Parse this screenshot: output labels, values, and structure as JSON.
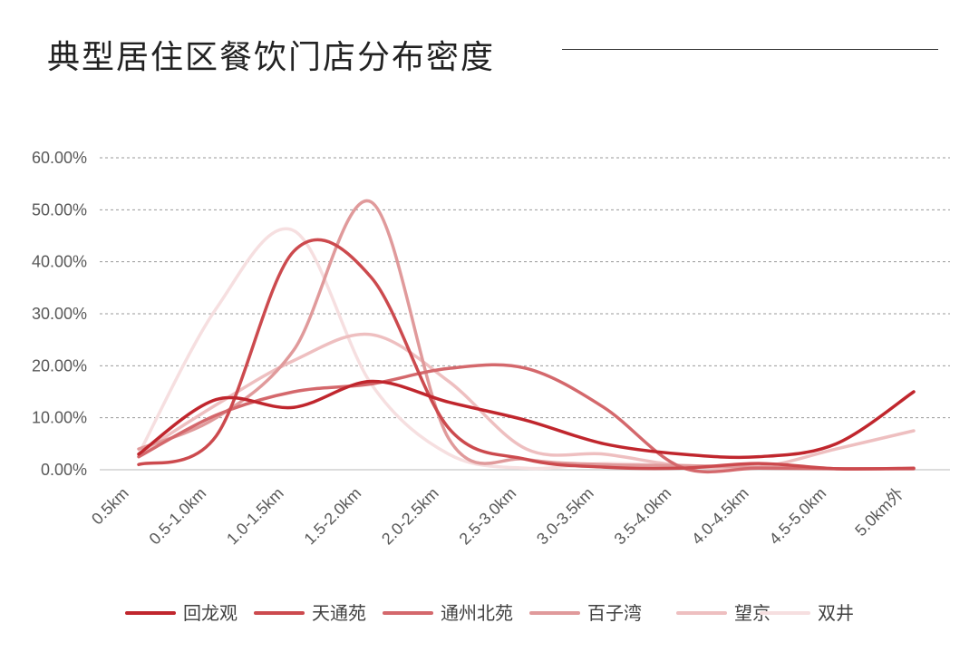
{
  "title": "典型居住区餐饮门店分布密度",
  "chart_data": {
    "type": "line",
    "smooth": true,
    "title": "典型居住区餐饮门店分布密度",
    "categories": [
      "0.5km",
      "0.5-1.0km",
      "1.0-1.5km",
      "1.5-2.0km",
      "2.0-2.5km",
      "2.5-3.0km",
      "3.0-3.5km",
      "3.5-4.0km",
      "4.0-4.5km",
      "4.5-5.0km",
      "5.0km外"
    ],
    "y_ticks": [
      "0.00%",
      "10.00%",
      "20.00%",
      "30.00%",
      "40.00%",
      "50.00%",
      "60.00%"
    ],
    "ylim": [
      0,
      60
    ],
    "grid": true,
    "legend_position": "bottom",
    "series": [
      {
        "name": "回龙观",
        "color": "#c0262d",
        "values": [
          3,
          13.5,
          12,
          17,
          13,
          9.5,
          5,
          3,
          2.5,
          5,
          15
        ]
      },
      {
        "name": "天通苑",
        "color": "#cc4a4e",
        "values": [
          1,
          6.5,
          42,
          37,
          8,
          2,
          0.5,
          0.3,
          1.2,
          0.2,
          0.3
        ]
      },
      {
        "name": "通州北苑",
        "color": "#d4686c",
        "values": [
          2.5,
          10.5,
          15,
          16.5,
          19.5,
          19.5,
          12,
          0.5,
          0.3,
          0.2,
          0.2
        ]
      },
      {
        "name": "百子湾",
        "color": "#e09a9b",
        "values": [
          4,
          10,
          23,
          51.5,
          6,
          2,
          1,
          0.8,
          0.5,
          0.2,
          0.2
        ]
      },
      {
        "name": "望京",
        "color": "#eebfc0",
        "values": [
          3,
          12.5,
          21,
          26,
          17,
          4,
          3,
          0.8,
          0.5,
          4,
          7.5
        ]
      },
      {
        "name": "双井",
        "color": "#f6dfe0",
        "values": [
          3,
          31,
          46,
          16.5,
          3,
          0.3,
          1.2,
          0.8,
          0.5,
          0.2,
          0.2
        ]
      }
    ]
  }
}
